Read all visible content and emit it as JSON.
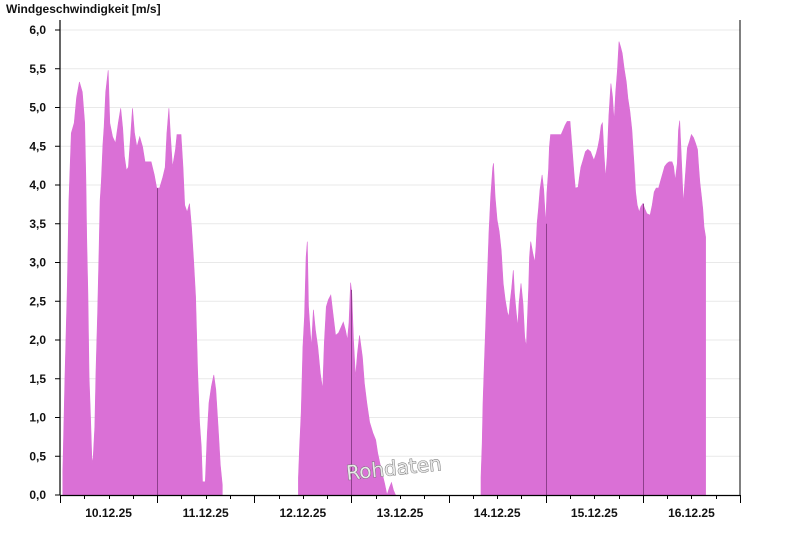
{
  "chart_data": {
    "type": "area",
    "title": "Windgeschwindigkeit [m/s]",
    "xlabel": "",
    "ylabel": "",
    "ylim": [
      0,
      6
    ],
    "yticks": [
      "0,0",
      "0,5",
      "1,0",
      "1,5",
      "2,0",
      "2,5",
      "3,0",
      "3,5",
      "4,0",
      "4,5",
      "5,0",
      "5,5",
      "6,0"
    ],
    "x_range": [
      "10.12.25 00:00",
      "17.12.25 00:00"
    ],
    "xtick_labels": [
      "10.12.25",
      "11.12.25",
      "12.12.25",
      "13.12.25",
      "14.12.25",
      "15.12.25",
      "16.12.25"
    ],
    "grid": "horizontal",
    "fill_color": "#da70d6",
    "day_separator_color": "#8e3f8c",
    "watermark": "Rohdaten",
    "segments": [
      [
        [
          "10.12.25 00:42",
          0.3
        ],
        [
          "10.12.25 01:12",
          1.5
        ],
        [
          "10.12.25 01:48",
          2.7
        ],
        [
          "10.12.25 02:12",
          3.8
        ],
        [
          "10.12.25 02:48",
          4.67
        ],
        [
          "10.12.25 03:30",
          4.8
        ],
        [
          "10.12.25 04:06",
          5.13
        ],
        [
          "10.12.25 04:48",
          5.33
        ],
        [
          "10.12.25 05:30",
          5.2
        ],
        [
          "10.12.25 06:06",
          4.8
        ],
        [
          "10.12.25 06:24",
          4.06
        ],
        [
          "10.12.25 06:36",
          3.33
        ],
        [
          "10.12.25 06:54",
          2.6
        ],
        [
          "10.12.25 07:12",
          1.52
        ],
        [
          "10.12.25 07:30",
          1.06
        ],
        [
          "10.12.25 07:54",
          0.41
        ],
        [
          "10.12.25 08:12",
          0.49
        ],
        [
          "10.12.25 08:36",
          0.88
        ],
        [
          "10.12.25 08:54",
          1.61
        ],
        [
          "10.12.25 09:18",
          2.35
        ],
        [
          "10.12.25 09:36",
          3.07
        ],
        [
          "10.12.25 09:54",
          3.8
        ],
        [
          "10.12.25 10:12",
          4.04
        ],
        [
          "10.12.25 10:36",
          4.52
        ],
        [
          "10.12.25 10:54",
          4.75
        ],
        [
          "10.12.25 11:18",
          5.2
        ],
        [
          "10.12.25 11:54",
          5.48
        ],
        [
          "10.12.25 12:18",
          4.8
        ],
        [
          "10.12.25 13:00",
          4.62
        ],
        [
          "10.12.25 13:42",
          4.54
        ],
        [
          "10.12.25 14:24",
          4.8
        ],
        [
          "10.12.25 15:00",
          4.99
        ],
        [
          "10.12.25 15:30",
          4.73
        ],
        [
          "10.12.25 15:54",
          4.37
        ],
        [
          "10.12.25 16:24",
          4.19
        ],
        [
          "10.12.25 16:54",
          4.23
        ],
        [
          "10.12.25 17:30",
          4.67
        ],
        [
          "10.12.25 17:54",
          4.99
        ],
        [
          "10.12.25 18:24",
          4.67
        ],
        [
          "10.12.25 19:00",
          4.49
        ],
        [
          "10.12.25 19:42",
          4.62
        ],
        [
          "10.12.25 20:24",
          4.49
        ],
        [
          "10.12.25 21:00",
          4.3
        ],
        [
          "10.12.25 22:30",
          4.3
        ],
        [
          "10.12.25 23:18",
          4.13
        ],
        [
          "10.12.25 23:54",
          3.96
        ],
        [
          "11.12.25 00:36",
          3.96
        ],
        [
          "11.12.25 01:24",
          4.1
        ],
        [
          "11.12.25 02:00",
          4.23
        ],
        [
          "11.12.25 02:24",
          4.67
        ],
        [
          "11.12.25 02:54",
          4.99
        ],
        [
          "11.12.25 03:18",
          4.62
        ],
        [
          "11.12.25 03:48",
          4.23
        ],
        [
          "11.12.25 04:30",
          4.45
        ],
        [
          "11.12.25 04:54",
          4.65
        ],
        [
          "11.12.25 05:54",
          4.65
        ],
        [
          "11.12.25 06:24",
          4.23
        ],
        [
          "11.12.25 06:48",
          3.74
        ],
        [
          "11.12.25 07:24",
          3.65
        ],
        [
          "11.12.25 08:00",
          3.76
        ],
        [
          "11.12.25 08:30",
          3.46
        ],
        [
          "11.12.25 09:00",
          3.03
        ],
        [
          "11.12.25 09:30",
          2.56
        ],
        [
          "11.12.25 10:00",
          1.61
        ],
        [
          "11.12.25 10:30",
          0.93
        ],
        [
          "11.12.25 10:54",
          0.62
        ],
        [
          "11.12.25 11:12",
          0.17
        ],
        [
          "11.12.25 11:54",
          0.17
        ],
        [
          "11.12.25 12:24",
          0.8
        ],
        [
          "11.12.25 12:48",
          1.19
        ],
        [
          "11.12.25 13:24",
          1.4
        ],
        [
          "11.12.25 14:00",
          1.55
        ],
        [
          "11.12.25 14:30",
          1.36
        ],
        [
          "11.12.25 15:06",
          0.84
        ],
        [
          "11.12.25 15:36",
          0.39
        ],
        [
          "11.12.25 16:06",
          0.13
        ]
      ],
      [
        [
          "12.12.25 10:54",
          0.22
        ],
        [
          "12.12.25 11:12",
          0.62
        ],
        [
          "12.12.25 11:36",
          1.07
        ],
        [
          "12.12.25 12:00",
          1.91
        ],
        [
          "12.12.25 12:24",
          2.3
        ],
        [
          "12.12.25 12:48",
          3.07
        ],
        [
          "12.12.25 13:06",
          3.27
        ],
        [
          "12.12.25 13:24",
          2.43
        ],
        [
          "12.12.25 13:48",
          2.13
        ],
        [
          "12.12.25 14:06",
          1.91
        ],
        [
          "12.12.25 14:36",
          2.39
        ],
        [
          "12.12.25 15:06",
          2.13
        ],
        [
          "12.12.25 15:42",
          1.91
        ],
        [
          "12.12.25 16:18",
          1.57
        ],
        [
          "12.12.25 16:54",
          1.36
        ],
        [
          "12.12.25 17:18",
          1.96
        ],
        [
          "12.12.25 17:48",
          2.43
        ],
        [
          "12.12.25 18:18",
          2.52
        ],
        [
          "12.12.25 18:54",
          2.58
        ],
        [
          "12.12.25 19:24",
          2.36
        ],
        [
          "12.12.25 20:06",
          2.06
        ],
        [
          "12.12.25 20:48",
          2.09
        ],
        [
          "12.12.25 21:30",
          2.17
        ],
        [
          "12.12.25 22:00",
          2.23
        ],
        [
          "12.12.25 22:30",
          2.13
        ],
        [
          "12.12.25 23:00",
          2.0
        ],
        [
          "12.12.25 23:24",
          2.22
        ],
        [
          "12.12.25 23:48",
          2.74
        ],
        [
          "13.12.25 00:06",
          2.6
        ],
        [
          "13.12.25 00:30",
          2.0
        ],
        [
          "13.12.25 01:00",
          1.52
        ],
        [
          "13.12.25 01:30",
          1.83
        ],
        [
          "13.12.25 02:00",
          2.06
        ],
        [
          "13.12.25 02:42",
          1.78
        ],
        [
          "13.12.25 03:12",
          1.44
        ],
        [
          "13.12.25 03:48",
          1.19
        ],
        [
          "13.12.25 04:30",
          0.94
        ],
        [
          "13.12.25 05:18",
          0.8
        ],
        [
          "13.12.25 06:00",
          0.71
        ],
        [
          "13.12.25 06:30",
          0.54
        ],
        [
          "13.12.25 07:24",
          0.32
        ],
        [
          "13.12.25 08:12",
          0.15
        ],
        [
          "13.12.25 08:48",
          0.0
        ],
        [
          "13.12.25 09:24",
          0.1
        ],
        [
          "13.12.25 09:54",
          0.16
        ],
        [
          "13.12.25 10:24",
          0.06
        ],
        [
          "13.12.25 10:54",
          0.0
        ]
      ],
      [
        [
          "14.12.25 08:00",
          0.23
        ],
        [
          "14.12.25 08:18",
          0.68
        ],
        [
          "14.12.25 08:30",
          1.19
        ],
        [
          "14.12.25 08:48",
          1.65
        ],
        [
          "14.12.25 09:06",
          2.08
        ],
        [
          "14.12.25 09:24",
          2.54
        ],
        [
          "14.12.25 09:42",
          2.97
        ],
        [
          "14.12.25 10:00",
          3.4
        ],
        [
          "14.12.25 10:24",
          3.85
        ],
        [
          "14.12.25 10:54",
          4.22
        ],
        [
          "14.12.25 11:06",
          4.28
        ],
        [
          "14.12.25 11:30",
          3.85
        ],
        [
          "14.12.25 12:00",
          3.55
        ],
        [
          "14.12.25 12:30",
          3.4
        ],
        [
          "14.12.25 13:00",
          3.16
        ],
        [
          "14.12.25 13:30",
          2.73
        ],
        [
          "14.12.25 14:00",
          2.52
        ],
        [
          "14.12.25 14:30",
          2.36
        ],
        [
          "14.12.25 14:54",
          2.3
        ],
        [
          "14.12.25 15:12",
          2.49
        ],
        [
          "14.12.25 15:36",
          2.67
        ],
        [
          "14.12.25 16:00",
          2.9
        ],
        [
          "14.12.25 16:18",
          2.6
        ],
        [
          "14.12.25 16:42",
          2.36
        ],
        [
          "14.12.25 17:06",
          2.17
        ],
        [
          "14.12.25 17:24",
          2.47
        ],
        [
          "14.12.25 17:54",
          2.73
        ],
        [
          "14.12.25 18:24",
          2.47
        ],
        [
          "14.12.25 18:48",
          2.04
        ],
        [
          "14.12.25 19:12",
          1.91
        ],
        [
          "14.12.25 19:30",
          2.3
        ],
        [
          "14.12.25 19:48",
          2.69
        ],
        [
          "14.12.25 20:00",
          3.07
        ],
        [
          "14.12.25 20:18",
          3.27
        ],
        [
          "14.12.25 20:48",
          3.12
        ],
        [
          "14.12.25 21:18",
          3.0
        ],
        [
          "14.12.25 21:36",
          3.2
        ],
        [
          "14.12.25 21:54",
          3.52
        ],
        [
          "14.12.25 22:12",
          3.68
        ],
        [
          "14.12.25 22:36",
          3.94
        ],
        [
          "14.12.25 23:06",
          4.13
        ],
        [
          "14.12.25 23:30",
          3.94
        ],
        [
          "15.12.25 00:00",
          3.5
        ],
        [
          "15.12.25 00:18",
          3.9
        ],
        [
          "15.12.25 00:42",
          4.19
        ],
        [
          "15.12.25 00:54",
          4.49
        ],
        [
          "15.12.25 01:12",
          4.65
        ],
        [
          "15.12.25 03:48",
          4.65
        ],
        [
          "15.12.25 04:18",
          4.71
        ],
        [
          "15.12.25 04:48",
          4.77
        ],
        [
          "15.12.25 05:18",
          4.82
        ],
        [
          "15.12.25 06:00",
          4.82
        ],
        [
          "15.12.25 06:30",
          4.49
        ],
        [
          "15.12.25 07:00",
          4.15
        ],
        [
          "15.12.25 07:18",
          3.96
        ],
        [
          "15.12.25 08:00",
          3.97
        ],
        [
          "15.12.25 08:18",
          4.09
        ],
        [
          "15.12.25 08:42",
          4.23
        ],
        [
          "15.12.25 09:12",
          4.32
        ],
        [
          "15.12.25 09:48",
          4.43
        ],
        [
          "15.12.25 10:24",
          4.46
        ],
        [
          "15.12.25 11:06",
          4.43
        ],
        [
          "15.12.25 11:30",
          4.37
        ],
        [
          "15.12.25 11:54",
          4.32
        ],
        [
          "15.12.25 12:30",
          4.41
        ],
        [
          "15.12.25 12:54",
          4.49
        ],
        [
          "15.12.25 13:18",
          4.6
        ],
        [
          "15.12.25 13:42",
          4.77
        ],
        [
          "15.12.25 14:00",
          4.8
        ],
        [
          "15.12.25 14:24",
          4.4
        ],
        [
          "15.12.25 14:48",
          4.09
        ],
        [
          "15.12.25 15:12",
          4.37
        ],
        [
          "15.12.25 15:36",
          4.9
        ],
        [
          "15.12.25 16:06",
          5.31
        ],
        [
          "15.12.25 16:30",
          5.14
        ],
        [
          "15.12.25 16:54",
          4.82
        ],
        [
          "15.12.25 17:18",
          5.2
        ],
        [
          "15.12.25 17:42",
          5.48
        ],
        [
          "15.12.25 18:06",
          5.85
        ],
        [
          "15.12.25 18:30",
          5.78
        ],
        [
          "15.12.25 18:54",
          5.7
        ],
        [
          "15.12.25 19:24",
          5.5
        ],
        [
          "15.12.25 19:54",
          5.33
        ],
        [
          "15.12.25 20:18",
          5.12
        ],
        [
          "15.12.25 20:48",
          4.95
        ],
        [
          "15.12.25 21:18",
          4.71
        ],
        [
          "15.12.25 21:48",
          4.28
        ],
        [
          "15.12.25 22:12",
          3.91
        ],
        [
          "15.12.25 22:36",
          3.74
        ],
        [
          "15.12.25 23:06",
          3.65
        ],
        [
          "15.12.25 23:30",
          3.72
        ],
        [
          "16.12.25 00:00",
          3.76
        ],
        [
          "16.12.25 00:30",
          3.69
        ],
        [
          "16.12.25 01:00",
          3.63
        ],
        [
          "16.12.25 01:48",
          3.61
        ],
        [
          "16.12.25 02:18",
          3.74
        ],
        [
          "16.12.25 02:48",
          3.91
        ],
        [
          "16.12.25 03:18",
          3.96
        ],
        [
          "16.12.25 03:54",
          3.96
        ],
        [
          "16.12.25 04:24",
          4.06
        ],
        [
          "16.12.25 04:54",
          4.15
        ],
        [
          "16.12.25 05:24",
          4.24
        ],
        [
          "16.12.25 06:00",
          4.28
        ],
        [
          "16.12.25 06:30",
          4.3
        ],
        [
          "16.12.25 07:12",
          4.3
        ],
        [
          "16.12.25 07:36",
          4.24
        ],
        [
          "16.12.25 08:00",
          4.06
        ],
        [
          "16.12.25 08:30",
          4.28
        ],
        [
          "16.12.25 08:48",
          4.71
        ],
        [
          "16.12.25 09:06",
          4.83
        ],
        [
          "16.12.25 09:30",
          4.37
        ],
        [
          "16.12.25 10:00",
          3.76
        ],
        [
          "16.12.25 10:30",
          4.13
        ],
        [
          "16.12.25 11:00",
          4.48
        ],
        [
          "16.12.25 11:30",
          4.56
        ],
        [
          "16.12.25 12:00",
          4.65
        ],
        [
          "16.12.25 12:30",
          4.61
        ],
        [
          "16.12.25 13:00",
          4.54
        ],
        [
          "16.12.25 13:30",
          4.46
        ],
        [
          "16.12.25 13:48",
          4.23
        ],
        [
          "16.12.25 14:06",
          4.03
        ],
        [
          "16.12.25 14:30",
          3.85
        ],
        [
          "16.12.25 14:48",
          3.69
        ],
        [
          "16.12.25 15:06",
          3.46
        ],
        [
          "16.12.25 15:30",
          3.33
        ]
      ]
    ]
  }
}
